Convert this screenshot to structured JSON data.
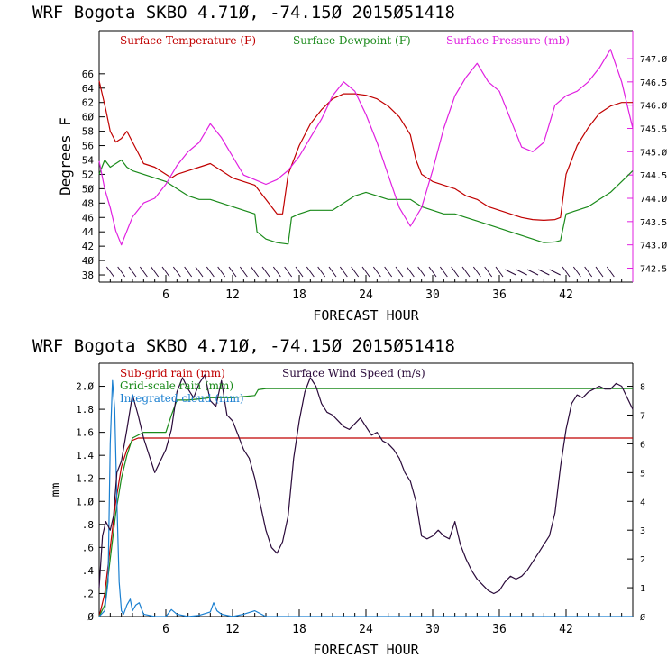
{
  "colors": {
    "temperature": "#c00000",
    "dewpoint": "#1a8a1a",
    "pressure": "#e020e0",
    "subgrid": "#c00000",
    "gridscale": "#1a8a1a",
    "cloud": "#1a7fd0",
    "wind": "#2a0a3a",
    "wind_barb": "#2a0a3a",
    "axes": "#000000",
    "right_axis_top": "#e020e0"
  },
  "chart_data": [
    {
      "type": "line",
      "header": "WRF   Bogota SKBO    4.71Ø, -74.15Ø  2015Ø51418",
      "xlabel": "FORECAST HOUR",
      "ylabel": "Degrees F",
      "xlim": [
        0,
        48
      ],
      "xticks": [
        "6",
        "12",
        "18",
        "24",
        "30",
        "36",
        "42"
      ],
      "ylim_left": [
        37,
        72
      ],
      "yticks_left": [
        "38",
        "4Ø",
        "42",
        "44",
        "46",
        "48",
        "5Ø",
        "52",
        "54",
        "56",
        "58",
        "6Ø",
        "62",
        "64",
        "66"
      ],
      "ylim_right": [
        742.2,
        747.6
      ],
      "yticks_right": [
        "742.5",
        "743.Ø",
        "743.5",
        "744.Ø",
        "744.5",
        "745.Ø",
        "745.5",
        "746.Ø",
        "746.5",
        "747.Ø"
      ],
      "legend": {
        "temperature": "Surface Temperature (F)",
        "dewpoint": "Surface Dewpoint (F)",
        "pressure": "Surface Pressure (mb)"
      },
      "series": [
        {
          "name": "Surface Temperature (F)",
          "axis": "left",
          "x": [
            0,
            0.3,
            0.6,
            1,
            1.5,
            2,
            2.5,
            3,
            3.5,
            4,
            5,
            6,
            6.5,
            7,
            8,
            9,
            10,
            11,
            12,
            13,
            14,
            15,
            16,
            16.5,
            17,
            18,
            19,
            20,
            21,
            22,
            23,
            24,
            25,
            26,
            27,
            28,
            28.5,
            29,
            30,
            31,
            32,
            33,
            34,
            35,
            36,
            37,
            38,
            39,
            40,
            41,
            41.5,
            42,
            43,
            44,
            45,
            46,
            47,
            48
          ],
          "values": [
            65,
            63,
            61,
            58,
            56.5,
            57,
            58,
            56.5,
            55,
            53.5,
            53,
            52,
            51.5,
            52,
            52.5,
            53,
            53.5,
            52.5,
            51.5,
            51,
            50.5,
            48.5,
            46.5,
            46.5,
            52,
            56,
            59,
            61,
            62.5,
            63.2,
            63.2,
            63,
            62.5,
            61.5,
            60,
            57.5,
            54,
            52,
            51,
            50.5,
            50,
            49,
            48.5,
            47.5,
            47,
            46.5,
            46,
            45.7,
            45.6,
            45.7,
            46,
            52,
            56,
            58.5,
            60.5,
            61.5,
            62,
            62
          ]
        },
        {
          "name": "Surface Dewpoint (F)",
          "axis": "left",
          "x": [
            0,
            0.5,
            1,
            1.5,
            2,
            2.5,
            3,
            4,
            5,
            6,
            7,
            8,
            9,
            10,
            11,
            12,
            13,
            14,
            14.2,
            15,
            16,
            17,
            17.3,
            18,
            19,
            20,
            21,
            22,
            23,
            24,
            25,
            26,
            27,
            28,
            29,
            30,
            31,
            32,
            33,
            34,
            35,
            36,
            37,
            38,
            39,
            40,
            41,
            41.5,
            42,
            43,
            44,
            45,
            46,
            47,
            48
          ],
          "values": [
            52,
            54,
            53,
            53.5,
            54,
            53,
            52.5,
            52,
            51.5,
            51,
            50,
            49,
            48.5,
            48.5,
            48,
            47.5,
            47,
            46.5,
            44,
            43,
            42.5,
            42.3,
            46,
            46.5,
            47,
            47,
            47,
            48,
            49,
            49.5,
            49,
            48.5,
            48.5,
            48.5,
            47.5,
            47,
            46.5,
            46.5,
            46,
            45.5,
            45,
            44.5,
            44,
            43.5,
            43,
            42.5,
            42.6,
            42.8,
            46.5,
            47,
            47.5,
            48.5,
            49.5,
            51,
            52.5
          ]
        },
        {
          "name": "Surface Pressure (mb)",
          "axis": "right",
          "x": [
            0,
            0.5,
            1,
            1.5,
            2,
            2.5,
            3,
            4,
            5,
            6,
            7,
            8,
            9,
            10,
            11,
            12,
            13,
            14,
            15,
            16,
            17,
            18,
            19,
            20,
            21,
            22,
            23,
            24,
            25,
            26,
            27,
            28,
            29,
            30,
            31,
            32,
            33,
            34,
            35,
            36,
            37,
            38,
            39,
            40,
            41,
            42,
            43,
            44,
            45,
            46,
            47,
            48
          ],
          "values": [
            744.8,
            744.2,
            743.8,
            743.3,
            743.0,
            743.3,
            743.6,
            743.9,
            744.0,
            744.3,
            744.7,
            745.0,
            745.2,
            745.6,
            745.3,
            744.9,
            744.5,
            744.4,
            744.3,
            744.4,
            744.6,
            744.9,
            745.3,
            745.7,
            746.2,
            746.5,
            746.3,
            745.8,
            745.2,
            744.5,
            743.8,
            743.4,
            743.8,
            744.6,
            745.5,
            746.2,
            746.6,
            746.9,
            746.5,
            746.3,
            745.7,
            745.1,
            745.0,
            745.2,
            746.0,
            746.2,
            746.3,
            746.5,
            746.8,
            747.2,
            746.5,
            745.5
          ]
        }
      ],
      "wind_barbs": "top-panel bottom row, hours 1–46"
    },
    {
      "type": "line",
      "header": "WRF   Bogota SKBO    4.71Ø, -74.15Ø  2015Ø51418",
      "xlabel": "FORECAST HOUR",
      "ylabel": "mm",
      "xlim": [
        0,
        48
      ],
      "xticks": [
        "6",
        "12",
        "18",
        "24",
        "30",
        "36",
        "42"
      ],
      "ylim_left": [
        0,
        2.2
      ],
      "yticks_left": [
        "Ø",
        ".2",
        ".4",
        ".6",
        ".8",
        "1.Ø",
        "1.2",
        "1.4",
        "1.6",
        "1.8",
        "2.Ø"
      ],
      "ylim_right": [
        0,
        8.8
      ],
      "yticks_right": [
        "Ø",
        "1",
        "2",
        "3",
        "4",
        "5",
        "6",
        "7",
        "8"
      ],
      "legend": {
        "subgrid": "Sub-grid rain (mm)",
        "gridscale": "Grid-scale rain (mm)",
        "cloud": "Integrated cloud (mm)",
        "wind": "Surface Wind Speed (m/s)"
      },
      "series": [
        {
          "name": "Sub-grid rain (mm)",
          "axis": "left",
          "x": [
            0,
            0.5,
            1,
            1.5,
            2,
            2.5,
            3,
            3.5,
            4,
            48
          ],
          "values": [
            0,
            0.2,
            0.6,
            1.0,
            1.3,
            1.45,
            1.53,
            1.55,
            1.55,
            1.55
          ]
        },
        {
          "name": "Grid-scale rain (mm)",
          "axis": "left",
          "x": [
            0,
            0.5,
            1,
            1.5,
            2,
            2.5,
            3,
            4,
            5,
            6,
            6.5,
            7,
            8,
            9,
            10,
            11,
            12,
            13,
            14,
            14.3,
            15,
            16,
            17,
            18,
            20,
            24,
            30,
            36,
            42,
            48
          ],
          "values": [
            0,
            0.1,
            0.5,
            0.9,
            1.2,
            1.4,
            1.55,
            1.6,
            1.6,
            1.6,
            1.75,
            1.88,
            1.88,
            1.89,
            1.9,
            1.9,
            1.9,
            1.91,
            1.92,
            1.97,
            1.98,
            1.98,
            1.98,
            1.98,
            1.98,
            1.98,
            1.98,
            1.98,
            1.98,
            1.98
          ]
        },
        {
          "name": "Integrated cloud (mm)",
          "axis": "left",
          "x": [
            0,
            0.5,
            0.8,
            1,
            1.2,
            1.4,
            1.6,
            1.8,
            2,
            2.2,
            2.5,
            2.8,
            3,
            3.3,
            3.6,
            4,
            4.5,
            5,
            6,
            6.5,
            7,
            8,
            9,
            10,
            10.3,
            10.6,
            11,
            12,
            13,
            14,
            15,
            48
          ],
          "values": [
            0,
            0.05,
            0.3,
            1.5,
            2.05,
            1.8,
            1.0,
            0.3,
            0.05,
            0.02,
            0.1,
            0.15,
            0.05,
            0.1,
            0.12,
            0.02,
            0.01,
            0,
            0,
            0.06,
            0.02,
            0,
            0.01,
            0.04,
            0.12,
            0.05,
            0.02,
            0,
            0.02,
            0.05,
            0,
            0
          ]
        },
        {
          "name": "Surface Wind Speed (m/s)",
          "axis": "right",
          "x": [
            0,
            0.3,
            0.6,
            1,
            1.3,
            1.6,
            2,
            2.5,
            3,
            3.5,
            4,
            4.5,
            5,
            5.5,
            6,
            6.5,
            7,
            7.5,
            8,
            8.5,
            9,
            9.5,
            10,
            10.5,
            11,
            11.5,
            12,
            12.5,
            13,
            13.5,
            14,
            14.5,
            15,
            15.5,
            16,
            16.5,
            17,
            17.5,
            18,
            18.5,
            19,
            19.5,
            20,
            20.5,
            21,
            21.5,
            22,
            22.5,
            23,
            23.5,
            24,
            24.5,
            25,
            25.5,
            26,
            26.5,
            27,
            27.5,
            28,
            28.5,
            29,
            29.5,
            30,
            30.5,
            31,
            31.5,
            32,
            32.5,
            33,
            33.5,
            34,
            34.5,
            35,
            35.5,
            36,
            36.5,
            37,
            37.5,
            38,
            38.5,
            39,
            39.5,
            40,
            40.5,
            41,
            41.5,
            42,
            42.5,
            43,
            43.5,
            44,
            44.5,
            45,
            45.5,
            46,
            46.5,
            47,
            47.5,
            48
          ],
          "values": [
            1.0,
            2.8,
            3.3,
            3.0,
            3.5,
            5.0,
            5.4,
            6.5,
            7.7,
            7.0,
            6.2,
            5.6,
            5.0,
            5.4,
            5.8,
            6.5,
            7.8,
            8.3,
            7.9,
            7.6,
            8.1,
            8.4,
            7.5,
            7.3,
            8.2,
            7.0,
            6.8,
            6.3,
            5.8,
            5.5,
            4.8,
            3.9,
            3.0,
            2.4,
            2.2,
            2.6,
            3.5,
            5.5,
            6.8,
            7.8,
            8.3,
            8.0,
            7.4,
            7.1,
            7.0,
            6.8,
            6.6,
            6.5,
            6.7,
            6.9,
            6.6,
            6.3,
            6.4,
            6.1,
            6.0,
            5.8,
            5.5,
            5.0,
            4.7,
            4.0,
            2.8,
            2.7,
            2.8,
            3.0,
            2.8,
            2.7,
            3.3,
            2.5,
            2.0,
            1.6,
            1.3,
            1.1,
            0.9,
            0.8,
            0.9,
            1.2,
            1.4,
            1.3,
            1.4,
            1.6,
            1.9,
            2.2,
            2.5,
            2.8,
            3.6,
            5.2,
            6.5,
            7.4,
            7.7,
            7.6,
            7.8,
            7.9,
            8.0,
            7.9,
            7.9,
            8.1,
            8.0,
            7.6,
            7.2
          ]
        }
      ]
    }
  ]
}
